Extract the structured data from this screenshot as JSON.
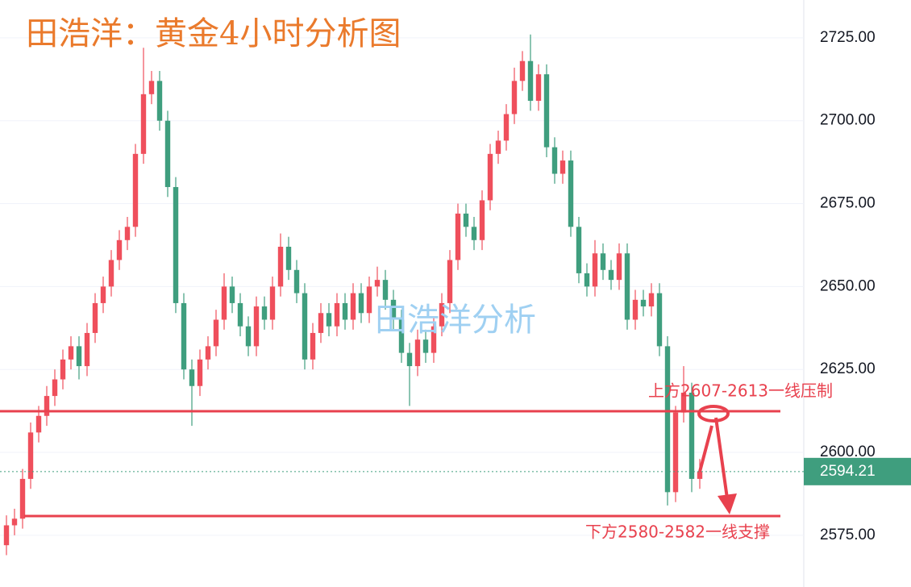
{
  "chart_data": {
    "type": "candlestick",
    "title": "田浩洋：黄金4小时分析图",
    "watermark": "田浩洋分析",
    "up_color": "#ef4f5c",
    "down_color": "#3f9e7e",
    "open": [
      2572,
      2578,
      2580,
      2592,
      2606,
      2611,
      2617,
      2622,
      2628,
      2632,
      2626,
      2636,
      2645,
      2650,
      2658,
      2664,
      2668,
      2690,
      2708,
      2712,
      2700,
      2680,
      2645,
      2625,
      2620,
      2628,
      2632,
      2640,
      2650,
      2645,
      2638,
      2632,
      2644,
      2640,
      2650,
      2662,
      2655,
      2648,
      2628,
      2636,
      2642,
      2638,
      2645,
      2640,
      2648,
      2642,
      2650,
      2652,
      2646,
      2640,
      2630,
      2626,
      2634,
      2630,
      2638,
      2645,
      2658,
      2672,
      2668,
      2664,
      2676,
      2690,
      2694,
      2702,
      2712,
      2718,
      2706,
      2714,
      2692,
      2684,
      2688,
      2668,
      2654,
      2650,
      2660,
      2655,
      2652,
      2660,
      2640,
      2646,
      2644,
      2648,
      2632,
      2588,
      2612,
      2618,
      2592
    ],
    "high": [
      2581,
      2583,
      2595,
      2609,
      2614,
      2620,
      2625,
      2631,
      2635,
      2635,
      2639,
      2648,
      2653,
      2661,
      2667,
      2671,
      2693,
      2722,
      2715,
      2715,
      2703,
      2683,
      2648,
      2628,
      2631,
      2635,
      2643,
      2654,
      2653,
      2648,
      2641,
      2647,
      2647,
      2653,
      2666,
      2665,
      2658,
      2651,
      2639,
      2645,
      2645,
      2648,
      2648,
      2651,
      2651,
      2653,
      2656,
      2655,
      2649,
      2643,
      2633,
      2637,
      2637,
      2641,
      2648,
      2661,
      2675,
      2675,
      2671,
      2679,
      2693,
      2697,
      2705,
      2716,
      2721,
      2726,
      2717,
      2717,
      2695,
      2691,
      2691,
      2671,
      2657,
      2664,
      2663,
      2658,
      2663,
      2663,
      2649,
      2649,
      2651,
      2651,
      2635,
      2614,
      2626,
      2621,
      2598
    ],
    "low": [
      2569,
      2575,
      2577,
      2589,
      2603,
      2608,
      2614,
      2619,
      2625,
      2622,
      2623,
      2633,
      2642,
      2647,
      2655,
      2661,
      2665,
      2687,
      2705,
      2697,
      2677,
      2642,
      2622,
      2608,
      2617,
      2625,
      2629,
      2637,
      2642,
      2635,
      2629,
      2629,
      2637,
      2637,
      2647,
      2652,
      2645,
      2625,
      2625,
      2633,
      2635,
      2635,
      2637,
      2637,
      2639,
      2639,
      2647,
      2643,
      2637,
      2627,
      2614,
      2623,
      2627,
      2627,
      2635,
      2642,
      2655,
      2665,
      2661,
      2661,
      2673,
      2687,
      2691,
      2699,
      2709,
      2703,
      2703,
      2689,
      2681,
      2681,
      2665,
      2651,
      2647,
      2647,
      2652,
      2649,
      2649,
      2637,
      2637,
      2641,
      2641,
      2629,
      2584,
      2585,
      2609,
      2588,
      2589
    ],
    "close": [
      2578,
      2580,
      2592,
      2606,
      2611,
      2617,
      2622,
      2628,
      2632,
      2626,
      2636,
      2645,
      2650,
      2658,
      2664,
      2668,
      2690,
      2708,
      2712,
      2700,
      2680,
      2645,
      2625,
      2620,
      2628,
      2632,
      2640,
      2650,
      2645,
      2638,
      2632,
      2644,
      2640,
      2650,
      2662,
      2655,
      2648,
      2628,
      2636,
      2642,
      2638,
      2645,
      2640,
      2648,
      2642,
      2650,
      2652,
      2646,
      2640,
      2630,
      2626,
      2634,
      2630,
      2638,
      2645,
      2658,
      2672,
      2668,
      2664,
      2676,
      2690,
      2694,
      2702,
      2712,
      2718,
      2706,
      2714,
      2692,
      2684,
      2688,
      2668,
      2654,
      2650,
      2660,
      2655,
      2652,
      2660,
      2640,
      2646,
      2644,
      2648,
      2632,
      2588,
      2612,
      2618,
      2592,
      2594.21
    ],
    "ylim": [
      2559.4,
      2736.4
    ],
    "yticks": [
      {
        "value": 2575,
        "label": "2575.00"
      },
      {
        "value": 2600,
        "label": "2600.00"
      },
      {
        "value": 2625,
        "label": "2625.00"
      },
      {
        "value": 2650,
        "label": "2650.00"
      },
      {
        "value": 2675,
        "label": "2675.00"
      },
      {
        "value": 2700,
        "label": "2700.00"
      },
      {
        "value": 2725,
        "label": "2725.00"
      }
    ],
    "grid": true,
    "last_price": 2594.21,
    "levels": [
      2612.4,
      2580.8
    ],
    "level_color": "#e8414e",
    "annotations": [
      "上方2607-2613一线压制",
      "下方2580-2582一线支撑"
    ]
  }
}
